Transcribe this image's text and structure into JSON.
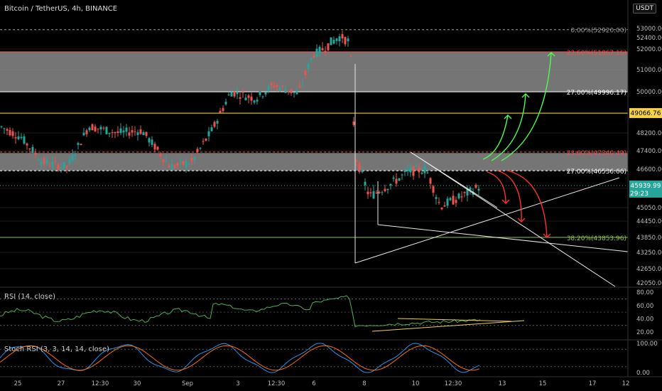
{
  "header": {
    "title": "Bitcoin / TetherUS, 4h, BINANCE",
    "currency": "USDT"
  },
  "price_axis": {
    "ticks": [
      "53000.00",
      "52400.00",
      "52000.00",
      "51000.00",
      "50000.00",
      "48200.00",
      "47400.00",
      "46600.00",
      "45050.00",
      "44450.00",
      "43850.00",
      "43250.00",
      "42650.00",
      "42050.00"
    ],
    "tick_prices": [
      53000,
      52400,
      52000,
      51000,
      50000,
      48200,
      47400,
      46600,
      45050,
      44450,
      43850,
      43250,
      42650,
      42050
    ]
  },
  "price_badges": {
    "yellow": {
      "label": "49066.76",
      "price": 49066.76,
      "color": "#f5d24a"
    },
    "current": {
      "label": "45939.99",
      "countdown": "29:23",
      "price": 45939.99,
      "color": "#26a69a"
    }
  },
  "fib_levels": [
    {
      "label": "0.00%(52920.00)",
      "price": 52920,
      "color": "#9e9e9e",
      "dashed": true
    },
    {
      "label": "23.60%(51867.16)",
      "price": 51867.16,
      "color": "#ef5350",
      "dashed": false
    },
    {
      "label": "27.00%(49996.17)",
      "price": 49996.17,
      "color": "#ffffff",
      "dashed": false
    },
    {
      "label": "23.60%(47340.49)",
      "price": 47340.49,
      "color": "#ef5350",
      "dashed": true
    },
    {
      "label": "27.00%(46536.66)",
      "price": 46536.66,
      "color": "#ffffff",
      "dashed": true
    },
    {
      "label": "38.20%(43853.96)",
      "price": 43853.96,
      "color": "#8bc34a",
      "dashed": false
    }
  ],
  "rsi": {
    "label": "RSI (14, close)",
    "ticks": [
      "80.00",
      "60.00",
      "40.00",
      "20.00"
    ],
    "tick_values": [
      80,
      60,
      40,
      20
    ],
    "line_color": "#4caf50"
  },
  "stoch": {
    "label": "Stoch RSI (3, 3, 14, 14, close)",
    "ticks": [
      "100.00",
      "0.00"
    ],
    "tick_values": [
      100,
      0
    ],
    "k_color": "#2196f3",
    "d_color": "#ff6d00"
  },
  "time_axis": {
    "labels": [
      "25",
      "27",
      "12:30",
      "30",
      "Sep",
      "3",
      "12:30",
      "6",
      "8",
      "10",
      "12:30",
      "13",
      "15",
      "17",
      "12"
    ]
  },
  "colors": {
    "up": "#26a69a",
    "down": "#ef5350",
    "zone": "#8a8a8a",
    "grid": "#1c1c1c"
  }
}
